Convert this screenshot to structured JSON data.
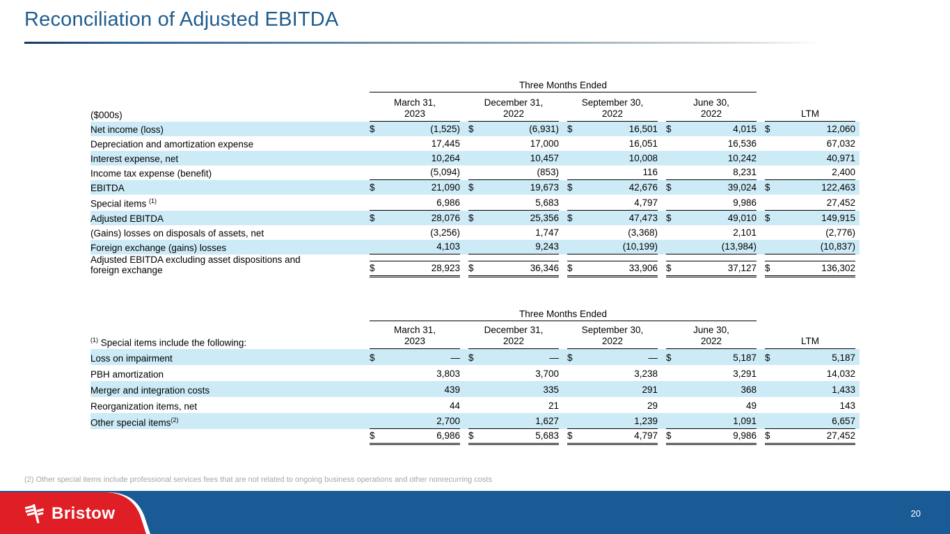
{
  "slide": {
    "title": "Reconciliation of Adjusted EBITDA",
    "page_number": "20",
    "footnote": "(2) Other special items include professional services fees that are not related to ongoing business operations and other nonrecurring costs",
    "logo_text": "Bristow"
  },
  "colors": {
    "title_blue": "#1F5C8E",
    "row_highlight": "#CDEBF7",
    "footer_blue": "#1A5B96",
    "brand_red": "#E01E26",
    "footnote_gray": "#A6A6A6"
  },
  "tables": [
    {
      "id": "ebitda-reconciliation",
      "row_class": "",
      "caption": "($000s)",
      "caption_sup": "",
      "spanner": "Three Months Ended",
      "currency": "$",
      "columns": [
        [
          "March 31,",
          "2023"
        ],
        [
          "December 31,",
          "2022"
        ],
        [
          "September 30,",
          "2022"
        ],
        [
          "June 30,",
          "2022"
        ],
        [
          "LTM"
        ]
      ],
      "rows": [
        {
          "label": "Net income (loss)",
          "hl": true,
          "d": true,
          "v": [
            "(1,525)",
            "(6,931)",
            "16,501",
            "4,015",
            "12,060"
          ]
        },
        {
          "label": "Depreciation and amortization expense",
          "indent": 1,
          "v": [
            "17,445",
            "17,000",
            "16,051",
            "16,536",
            "67,032"
          ]
        },
        {
          "label": "Interest expense, net",
          "indent": 1,
          "hl": true,
          "v": [
            "10,264",
            "10,457",
            "10,008",
            "10,242",
            "40,971"
          ]
        },
        {
          "label": "Income tax expense (benefit)",
          "indent": 1,
          "v": [
            "(5,094)",
            "(853)",
            "116",
            "8,231",
            "2,400"
          ],
          "rb": "s"
        },
        {
          "label": "EBITDA",
          "hl": true,
          "d": true,
          "v": [
            "21,090",
            "19,673",
            "42,676",
            "39,024",
            "122,463"
          ]
        },
        {
          "label": "Special items ",
          "sup": "(1)",
          "indent": 1,
          "v": [
            "6,986",
            "5,683",
            "4,797",
            "9,986",
            "27,452"
          ],
          "rb": "s"
        },
        {
          "label": "Adjusted EBITDA",
          "hl": true,
          "d": true,
          "v": [
            "28,076",
            "25,356",
            "47,473",
            "49,010",
            "149,915"
          ]
        },
        {
          "label": "(Gains) losses on disposals of assets, net",
          "indent": 2,
          "v": [
            "(3,256)",
            "1,747",
            "(3,368)",
            "2,101",
            "(2,776)"
          ]
        },
        {
          "label": "Foreign exchange (gains) losses",
          "indent": 2,
          "hl": true,
          "v": [
            "4,103",
            "9,243",
            "(10,199)",
            "(13,984)",
            "(10,837)"
          ],
          "rb": "s"
        },
        {
          "label": "Adjusted EBITDA excluding asset dispositions and",
          "label2": "foreign exchange",
          "d": true,
          "tall": true,
          "rt": true,
          "rb": "d",
          "v": [
            "28,923",
            "36,346",
            "33,906",
            "37,127",
            "136,302"
          ]
        }
      ]
    },
    {
      "id": "special-items-detail",
      "row_class": "t2",
      "caption": "Special items include the following:",
      "caption_sup": "(1)",
      "spanner": "Three Months Ended",
      "currency": "$",
      "columns": [
        [
          "March 31,",
          "2023"
        ],
        [
          "December 31,",
          "2022"
        ],
        [
          "September 30,",
          "2022"
        ],
        [
          "June 30,",
          "2022"
        ],
        [
          "LTM"
        ]
      ],
      "rows": [
        {
          "label": "Loss on impairment",
          "hl": true,
          "d": true,
          "v": [
            "—",
            "—",
            "—",
            "5,187",
            "5,187"
          ]
        },
        {
          "label": "PBH amortization",
          "v": [
            "3,803",
            "3,700",
            "3,238",
            "3,291",
            "14,032"
          ]
        },
        {
          "label": "Merger and integration costs",
          "hl": true,
          "v": [
            "439",
            "335",
            "291",
            "368",
            "1,433"
          ]
        },
        {
          "label": "Reorganization items, net",
          "v": [
            "44",
            "21",
            "29",
            "49",
            "143"
          ]
        },
        {
          "label": "Other special items",
          "sup": "(2)",
          "hl": true,
          "v": [
            "2,700",
            "1,627",
            "1,239",
            "1,091",
            "6,657"
          ],
          "rb": "s"
        },
        {
          "label": "",
          "d": true,
          "v": [
            "6,986",
            "5,683",
            "4,797",
            "9,986",
            "27,452"
          ],
          "rb": "d"
        }
      ]
    }
  ]
}
